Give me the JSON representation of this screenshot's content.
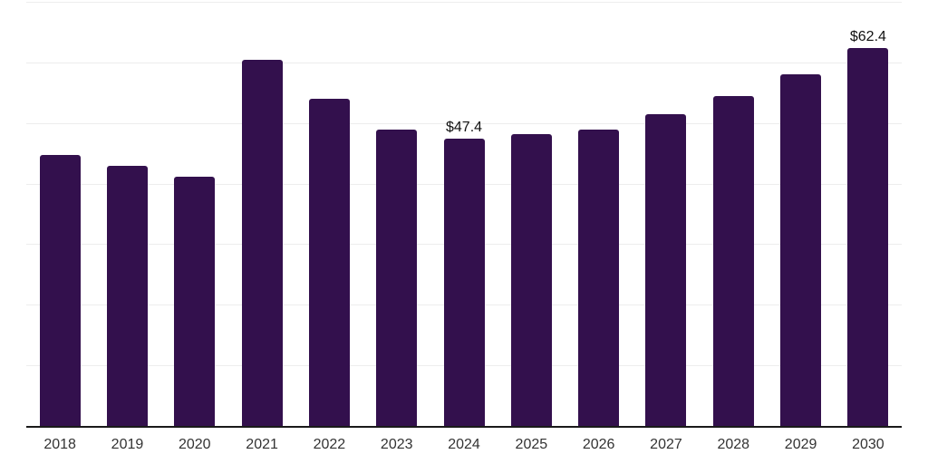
{
  "chart_data": {
    "type": "bar",
    "title": "",
    "xlabel": "",
    "ylabel": "",
    "categories": [
      "2018",
      "2019",
      "2020",
      "2021",
      "2022",
      "2023",
      "2024",
      "2025",
      "2026",
      "2027",
      "2028",
      "2029",
      "2030"
    ],
    "values": [
      44.7,
      43.0,
      41.2,
      60.5,
      54.0,
      48.9,
      47.4,
      48.1,
      48.9,
      51.5,
      54.5,
      58.1,
      62.4
    ],
    "data_labels": {
      "2024": "$47.4",
      "2030": "$62.4"
    },
    "ylim": [
      0,
      70
    ],
    "gridline_step": 10,
    "grid": "horizontal-only",
    "legend_position": "none",
    "y_axis_tick_labels_visible": false,
    "colors": {
      "bar": "#33104d",
      "axis_line": "#1a1a1a",
      "gridline": "#ededed",
      "tick_label": "#333333",
      "value_label": "#111111",
      "background": "#ffffff"
    }
  }
}
